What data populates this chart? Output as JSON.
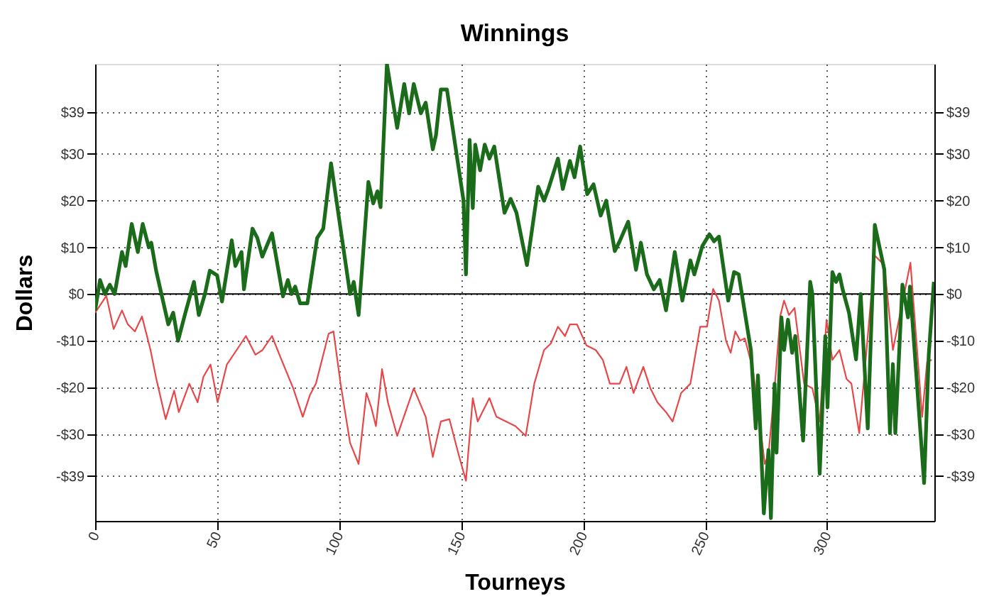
{
  "chart_data": {
    "type": "line",
    "title": "Winnings",
    "xlabel": "Tourneys",
    "ylabel": "Dollars",
    "xlim": [
      0,
      344
    ],
    "xticks": [
      0,
      50,
      100,
      150,
      200,
      250,
      300
    ],
    "ylim": [
      -48.6,
      49.3
    ],
    "yticks": [
      {
        "value": -39,
        "label": "-$39"
      },
      {
        "value": -30,
        "label": "-$30"
      },
      {
        "value": -20,
        "label": "-$20"
      },
      {
        "value": -10,
        "label": "-$10"
      },
      {
        "value": 0,
        "label": "$0"
      },
      {
        "value": 10,
        "label": "$10"
      },
      {
        "value": 20,
        "label": "$20"
      },
      {
        "value": 30,
        "label": "$30"
      },
      {
        "value": 39,
        "label": "$39"
      }
    ],
    "y2lim": [
      -48.6,
      49.3
    ],
    "y2ticks": [
      {
        "value": -39,
        "label": "-$39"
      },
      {
        "value": -30,
        "label": "-$30"
      },
      {
        "value": -20,
        "label": "-$20"
      },
      {
        "value": -10,
        "label": "-$10"
      },
      {
        "value": 0,
        "label": "$0"
      },
      {
        "value": 10,
        "label": "$10"
      },
      {
        "value": 20,
        "label": "$20"
      },
      {
        "value": 30,
        "label": "$30"
      },
      {
        "value": 39,
        "label": "$39"
      }
    ],
    "grid": true,
    "marker": "none",
    "line_style": "solid",
    "ref_lines": [
      {
        "axis": "y",
        "value": 0,
        "color": "#000000",
        "line_style": "solid"
      }
    ],
    "series": [
      {
        "color": "#e8474a",
        "x": [
          0,
          4.6,
          7.6,
          11,
          13.4,
          16.3,
          19.2,
          22.7,
          25,
          28.9,
          32.4,
          34.3,
          38.6,
          42,
          44.4,
          47.3,
          50.2,
          54,
          58,
          61.8,
          65.7,
          68.6,
          72.5,
          76.4,
          81.2,
          85.1,
          88,
          90.5,
          95.7,
          97.7,
          100.6,
          104.5,
          108,
          111.2,
          113.2,
          115.1,
          117.6,
          120,
          123.8,
          130.6,
          135.5,
          138.4,
          141.7,
          145.2,
          149,
          152,
          154.8,
          156.8,
          161.6,
          164.5,
          172.3,
          176.5,
          180,
          184,
          186.8,
          189.7,
          192.6,
          194.6,
          197.5,
          201.4,
          205.2,
          208.1,
          211,
          215,
          217.8,
          220.7,
          224.7,
          227.6,
          230.5,
          234,
          236.7,
          240.2,
          244,
          248,
          250.8,
          253.3,
          255.7,
          258.6,
          260.5,
          262.4,
          264.4,
          266.3,
          269.6,
          272.1,
          274.5,
          276,
          278.5,
          280.9,
          282.4,
          284.4,
          286.7,
          290.6,
          294,
          297,
          299.8,
          302.2,
          305.1,
          308,
          310,
          313.2,
          319.6,
          323.5,
          327,
          329.3,
          332.8,
          334.2,
          339,
          341,
          342.9
        ],
        "values": [
          -4,
          -0.4,
          -7.5,
          -3.5,
          -6.5,
          -8,
          -4.8,
          -12,
          -18,
          -26.8,
          -20.7,
          -25.3,
          -19.2,
          -23.2,
          -17.7,
          -15.1,
          -23.2,
          -15.1,
          -12,
          -9,
          -13,
          -12,
          -9,
          -14.1,
          -20.2,
          -26.3,
          -21.7,
          -19.2,
          -8.5,
          -8,
          -19.2,
          -31.9,
          -36.4,
          -21.2,
          -24.3,
          -28.3,
          -16.1,
          -23.2,
          -30.4,
          -20.2,
          -26.3,
          -34.9,
          -27.3,
          -26.8,
          -34.4,
          -40,
          -22.3,
          -27.3,
          -22.3,
          -26.3,
          -28.3,
          -30.4,
          -19.2,
          -12,
          -10.6,
          -7,
          -9,
          -6.5,
          -6.5,
          -11,
          -12,
          -14.1,
          -19.2,
          -19.2,
          -15.6,
          -21.2,
          -15.6,
          -20.2,
          -23.2,
          -25.3,
          -27.3,
          -21.2,
          -19.2,
          -7,
          -7,
          1.1,
          -1.4,
          -10,
          -12.6,
          -8,
          -10,
          -9.5,
          -16.1,
          -26.3,
          -36.4,
          -34.4,
          -20.2,
          -4.5,
          -1.4,
          -4.5,
          -3,
          -19.2,
          -20.2,
          -27.3,
          -5.5,
          -14.1,
          -12,
          -18.2,
          -19.2,
          -29.8,
          8.2,
          6.2,
          -12,
          -6,
          3.1,
          6.7,
          -26.3,
          -14.6,
          -14.1
        ]
      },
      {
        "color": "#1a6b1a",
        "x": [
          0,
          2,
          4,
          6,
          8,
          11,
          12.5,
          15,
          17.5,
          19.5,
          22,
          23,
          25,
          30,
          32,
          34,
          37,
          40.5,
          42.5,
          45,
          47,
          50,
          52,
          56,
          57.5,
          60,
          61,
          64.5,
          66.5,
          68.5,
          72.5,
          77,
          79,
          80.5,
          82,
          84,
          87,
          91,
          93.5,
          96.7,
          104.5,
          106,
          108,
          112,
          114,
          115.7,
          117,
          119.6,
          123.8,
          126.7,
          128.7,
          130.6,
          133.5,
          135.5,
          138.4,
          139.7,
          141.7,
          144.2,
          151,
          152,
          153.5,
          154.8,
          155.8,
          157.8,
          159.7,
          161.6,
          163.6,
          167.8,
          170.3,
          172.7,
          177,
          181.6,
          184,
          185.8,
          189.7,
          191.7,
          194.6,
          196.5,
          198.8,
          201.7,
          204.3,
          207.2,
          209.5,
          213,
          215,
          218.5,
          221.7,
          223.7,
          226.2,
          229,
          231.4,
          234,
          237.6,
          240.7,
          244,
          245.6,
          248.9,
          251.8,
          253.7,
          255.7,
          259.5,
          261.9,
          263.8,
          268.8,
          270.8,
          271.7,
          274.1,
          276,
          277,
          278.5,
          279.3,
          281.3,
          282.4,
          284,
          285.7,
          287,
          290.2,
          293.1,
          294,
          297,
          299.3,
          300.2,
          302.2,
          303.7,
          305.1,
          306.4,
          309,
          311.9,
          313.8,
          316.7,
          319.6,
          323.5,
          325.8,
          327,
          328,
          330.9,
          333.2,
          334,
          339.8,
          341.7,
          343.8
        ],
        "values": [
          -3.5,
          3,
          0,
          2,
          0,
          9,
          6,
          15,
          9,
          15,
          10,
          11,
          5,
          -6.5,
          -4,
          -10,
          -4,
          2.6,
          -4.5,
          0,
          5,
          4,
          -1.6,
          11.5,
          6,
          9,
          1,
          14,
          12,
          8,
          13,
          -0.5,
          3,
          0,
          1.6,
          -2,
          -2,
          12,
          14,
          28,
          0,
          2.6,
          -4.5,
          24,
          19.4,
          22,
          18.6,
          49.3,
          35.6,
          45,
          38.7,
          45,
          38.7,
          41,
          31,
          34,
          43.8,
          43.8,
          20,
          4.2,
          33,
          18.4,
          32,
          26.5,
          32,
          29,
          31.6,
          17.4,
          20.4,
          17.4,
          6.2,
          23,
          20,
          22.5,
          29,
          22.5,
          28.5,
          25,
          31.6,
          21.4,
          23.5,
          16.8,
          20,
          9.2,
          11.3,
          15.5,
          5.2,
          11,
          4.2,
          1,
          3,
          -3.5,
          9,
          -1.4,
          7.2,
          4.2,
          10.3,
          12.8,
          11.3,
          12.3,
          -1.4,
          4.7,
          4.2,
          -12,
          -28.8,
          -17.4,
          -47,
          -33.4,
          -48,
          -19.2,
          -34,
          -5,
          -12,
          -5.5,
          -12.6,
          -9,
          -31.4,
          2.6,
          0,
          -38.5,
          -9,
          -24.3,
          4.7,
          2.6,
          4.2,
          1,
          -4,
          -14,
          0,
          -28.8,
          14.8,
          5.2,
          -29.8,
          -15,
          -29.8,
          2,
          -5,
          1.6,
          -40.5,
          -13,
          2.6
        ]
      }
    ]
  }
}
